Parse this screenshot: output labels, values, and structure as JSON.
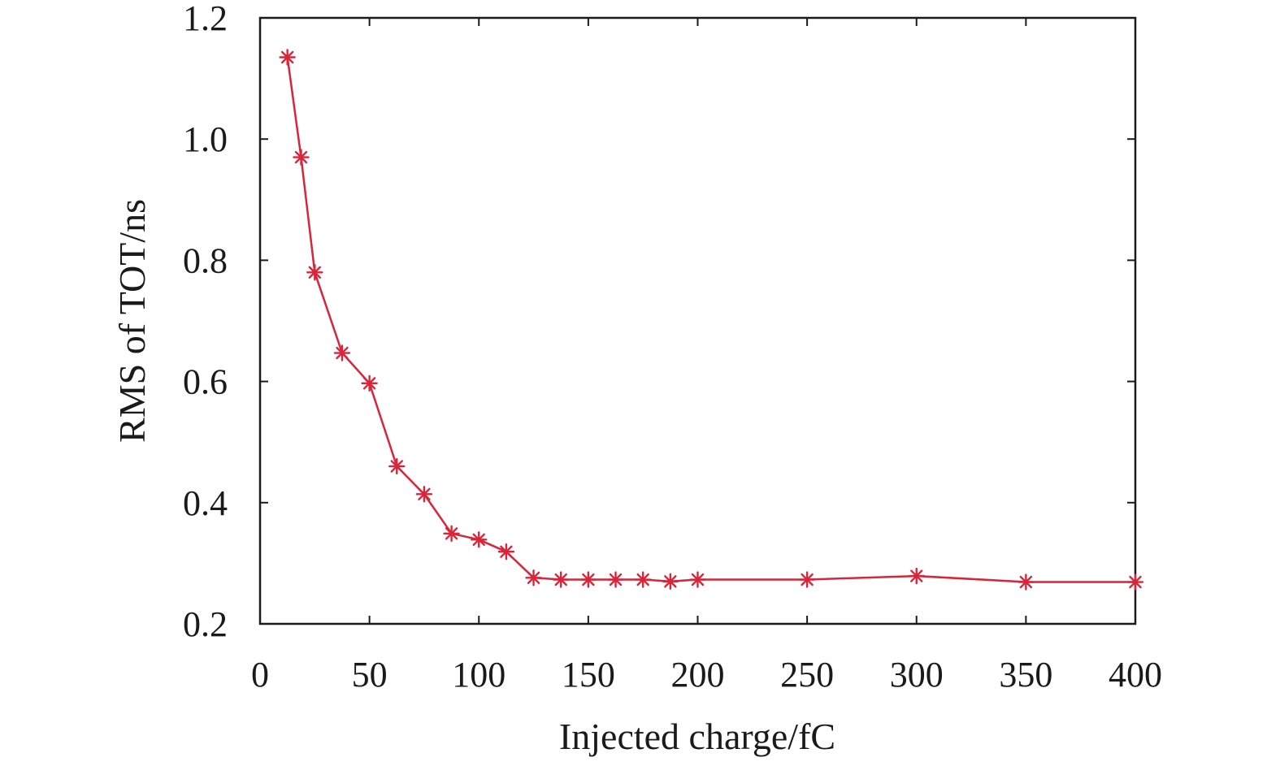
{
  "chart_data": {
    "type": "line",
    "title": "",
    "xlabel": "Injected charge/fC",
    "ylabel": "RMS of TOT/ns",
    "xlim": [
      0,
      400
    ],
    "ylim": [
      0.2,
      1.2
    ],
    "xticks": [
      0,
      50,
      100,
      150,
      200,
      250,
      300,
      350,
      400
    ],
    "xtick_labels": [
      "0",
      "50",
      "100",
      "150",
      "200",
      "250",
      "300",
      "350",
      "400"
    ],
    "yticks": [
      0.2,
      0.4,
      0.6,
      0.8,
      1.0,
      1.2
    ],
    "ytick_labels": [
      "0.2",
      "0.4",
      "0.6",
      "0.8",
      "1.0",
      "1.2"
    ],
    "grid": false,
    "legend": "none",
    "series": [
      {
        "color": "#d9243a",
        "marker": "asterisk",
        "x": [
          12.5,
          18.75,
          25,
          37.5,
          50,
          62.5,
          75,
          87.5,
          100,
          112.5,
          125,
          137.5,
          150,
          162.5,
          175,
          187.5,
          200,
          250,
          300,
          350,
          400
        ],
        "y": [
          1.135,
          0.97,
          0.78,
          0.647,
          0.597,
          0.46,
          0.414,
          0.349,
          0.339,
          0.319,
          0.276,
          0.273,
          0.273,
          0.273,
          0.273,
          0.27,
          0.273,
          0.273,
          0.279,
          0.269,
          0.269
        ]
      }
    ]
  }
}
